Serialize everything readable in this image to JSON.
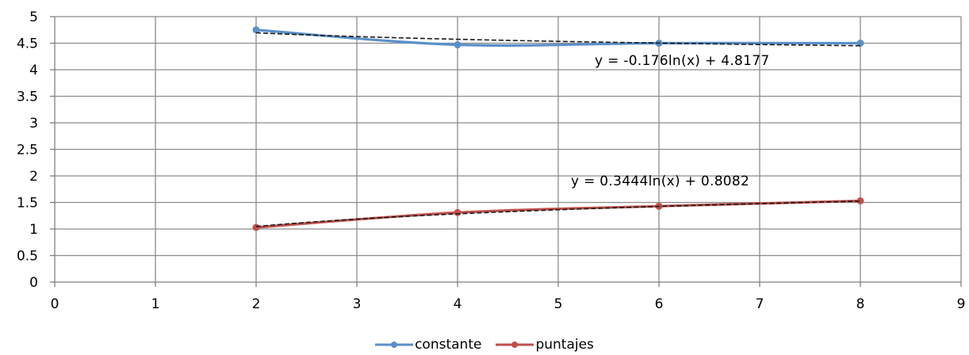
{
  "chart_data": {
    "type": "line",
    "title": "",
    "xlabel": "",
    "ylabel": "",
    "xlim": [
      0,
      9
    ],
    "ylim": [
      0,
      5
    ],
    "x_ticks": [
      "0",
      "1",
      "2",
      "3",
      "4",
      "5",
      "6",
      "7",
      "8",
      "9"
    ],
    "y_ticks": [
      "0",
      "0.5",
      "1",
      "1.5",
      "2",
      "2.5",
      "3",
      "3.5",
      "4",
      "4.5",
      "5"
    ],
    "grid": true,
    "legend_position": "bottom",
    "series": [
      {
        "name": "constante",
        "color": "#5b8fc9",
        "x": [
          2,
          4,
          6,
          8
        ],
        "y": [
          4.75,
          4.47,
          4.5,
          4.5
        ],
        "trendline": {
          "type": "logarithmic",
          "a": -0.176,
          "b": 4.8177,
          "color": "#1a1a1a",
          "label": "y = -0.176ln(x) + 4.8177"
        }
      },
      {
        "name": "puntajes",
        "color": "#c0504d",
        "x": [
          2,
          4,
          6,
          8
        ],
        "y": [
          1.03,
          1.31,
          1.43,
          1.53
        ],
        "trendline": {
          "type": "logarithmic",
          "a": 0.3444,
          "b": 0.8082,
          "color": "#1a1a1a",
          "label": "y = 0.3444ln(x) + 0.8082"
        }
      }
    ]
  }
}
